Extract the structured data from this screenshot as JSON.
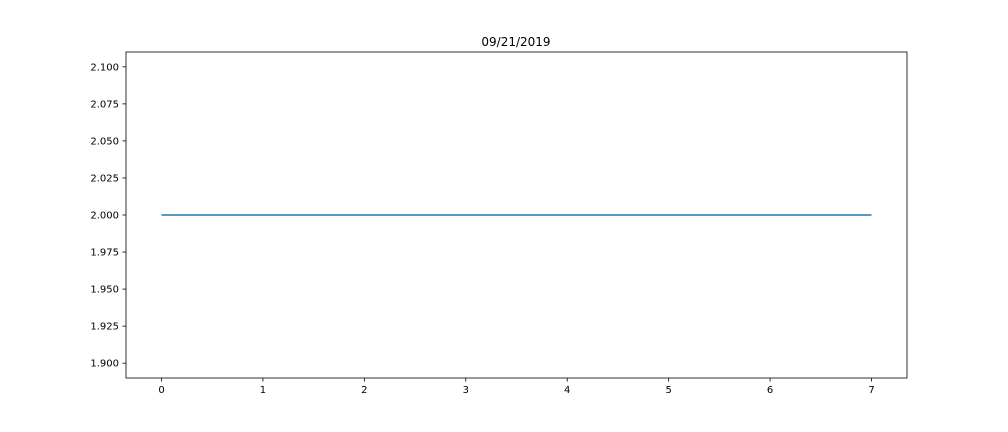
{
  "chart_data": {
    "type": "line",
    "title": "09/21/2019",
    "xlabel": "",
    "ylabel": "",
    "xlim": [
      -0.35,
      7.35
    ],
    "ylim": [
      1.89,
      2.11
    ],
    "xticks": [
      0,
      1,
      2,
      3,
      4,
      5,
      6,
      7
    ],
    "xtick_labels": [
      "0",
      "1",
      "2",
      "3",
      "4",
      "5",
      "6",
      "7"
    ],
    "yticks": [
      1.9,
      1.925,
      1.95,
      1.975,
      2.0,
      2.025,
      2.05,
      2.075,
      2.1
    ],
    "ytick_labels": [
      "1.900",
      "1.925",
      "1.950",
      "1.975",
      "2.000",
      "2.025",
      "2.050",
      "2.075",
      "2.100"
    ],
    "grid": false,
    "series": [
      {
        "color": "#1f77b4",
        "x": [
          0,
          1,
          2,
          3,
          4,
          5,
          6,
          7
        ],
        "y": [
          2.0,
          2.0,
          2.0,
          2.0,
          2.0,
          2.0,
          2.0,
          2.0
        ]
      }
    ]
  }
}
